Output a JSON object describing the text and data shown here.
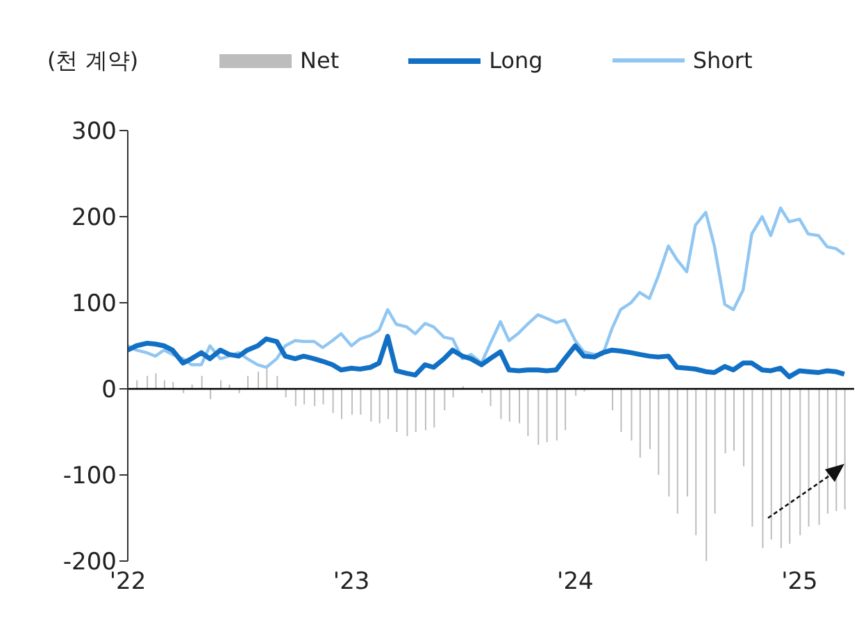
{
  "chart_data": {
    "type": "line",
    "ylabel": "(천 계약)",
    "legend": "top",
    "x": [
      "2022-01-01",
      "2022-01-15",
      "2022-02-01",
      "2022-02-15",
      "2022-03-01",
      "2022-03-15",
      "2022-04-01",
      "2022-04-15",
      "2022-05-01",
      "2022-05-15",
      "2022-06-01",
      "2022-06-15",
      "2022-07-01",
      "2022-07-15",
      "2022-08-01",
      "2022-08-15",
      "2022-09-01",
      "2022-09-15",
      "2022-10-01",
      "2022-10-15",
      "2022-11-01",
      "2022-11-15",
      "2022-12-01",
      "2022-12-15",
      "2023-01-01",
      "2023-01-15",
      "2023-02-01",
      "2023-02-15",
      "2023-03-01",
      "2023-03-15",
      "2023-04-01",
      "2023-04-15",
      "2023-05-01",
      "2023-05-15",
      "2023-06-01",
      "2023-06-15",
      "2023-07-01",
      "2023-07-15",
      "2023-08-01",
      "2023-08-15",
      "2023-09-01",
      "2023-09-15",
      "2023-10-01",
      "2023-10-15",
      "2023-11-01",
      "2023-11-15",
      "2023-12-01",
      "2023-12-15",
      "2024-01-01",
      "2024-01-15",
      "2024-02-01",
      "2024-02-15",
      "2024-03-01",
      "2024-03-15",
      "2024-04-01",
      "2024-04-15",
      "2024-05-01",
      "2024-05-15",
      "2024-06-01",
      "2024-06-15",
      "2024-07-01",
      "2024-07-15",
      "2024-08-01",
      "2024-08-15",
      "2024-09-01",
      "2024-09-15",
      "2024-10-01",
      "2024-10-15",
      "2024-11-01",
      "2024-11-15",
      "2024-12-01",
      "2024-12-15",
      "2025-01-01",
      "2025-01-15",
      "2025-02-01",
      "2025-02-15",
      "2025-03-01",
      "2025-03-15"
    ],
    "series": [
      {
        "name": "Net",
        "type": "bar",
        "color": "#bdbdbd",
        "values": [
          null,
          10,
          15,
          18,
          10,
          8,
          -5,
          5,
          15,
          -12,
          10,
          5,
          -5,
          15,
          20,
          25,
          15,
          -10,
          -20,
          -18,
          -20,
          -18,
          -28,
          -35,
          -30,
          -30,
          -38,
          -40,
          -35,
          -50,
          -55,
          -50,
          -48,
          -45,
          -25,
          -10,
          3,
          0,
          -5,
          -20,
          -35,
          -38,
          -40,
          -55,
          -65,
          -62,
          -60,
          -48,
          -8,
          -3,
          0,
          null,
          -25,
          -50,
          -60,
          -80,
          -70,
          -100,
          -125,
          -145,
          -125,
          -170,
          -200,
          -145,
          -75,
          -72,
          -90,
          -160,
          -185,
          -175,
          -185,
          -180,
          -170,
          -160,
          -158,
          -145,
          -142,
          -140
        ]
      },
      {
        "name": "Long",
        "color": "#1270c4",
        "values": [
          45,
          50,
          53,
          52,
          50,
          45,
          30,
          35,
          42,
          35,
          45,
          40,
          38,
          45,
          50,
          58,
          55,
          38,
          35,
          38,
          35,
          32,
          28,
          22,
          24,
          23,
          25,
          30,
          61,
          21,
          18,
          16,
          28,
          25,
          35,
          45,
          38,
          35,
          28,
          35,
          43,
          22,
          21,
          22,
          22,
          21,
          22,
          35,
          50,
          38,
          37,
          42,
          45,
          44,
          42,
          40,
          38,
          37,
          38,
          25,
          24,
          23,
          20,
          19,
          26,
          22,
          30,
          30,
          22,
          21,
          24,
          14,
          21,
          20,
          19,
          21,
          20,
          17
        ]
      },
      {
        "name": "Short",
        "color": "#90c6f2",
        "values": [
          50,
          45,
          42,
          38,
          45,
          40,
          35,
          28,
          28,
          50,
          35,
          38,
          42,
          35,
          28,
          25,
          35,
          50,
          56,
          55,
          55,
          48,
          56,
          64,
          50,
          58,
          62,
          68,
          92,
          75,
          72,
          64,
          76,
          72,
          60,
          58,
          35,
          40,
          30,
          52,
          78,
          56,
          65,
          75,
          86,
          82,
          77,
          80,
          56,
          43,
          40,
          40,
          70,
          92,
          100,
          112,
          105,
          130,
          166,
          150,
          136,
          190,
          205,
          166,
          98,
          92,
          115,
          180,
          200,
          178,
          210,
          194,
          197,
          180,
          178,
          165,
          163,
          156
        ]
      }
    ],
    "xlim": [
      "2022-01-01",
      "2025-03-31"
    ],
    "xticks": [
      {
        "value": "2022-01-01",
        "label": "'22"
      },
      {
        "value": "2023-01-01",
        "label": "'23"
      },
      {
        "value": "2024-01-01",
        "label": "'24"
      },
      {
        "value": "2025-01-01",
        "label": "'25"
      }
    ],
    "ylim": [
      -200,
      300
    ],
    "yticks": [
      -200,
      -100,
      0,
      100,
      200,
      300
    ],
    "ref_lines": [
      {
        "axis": "y",
        "value": 0,
        "color": "#000000"
      }
    ]
  }
}
